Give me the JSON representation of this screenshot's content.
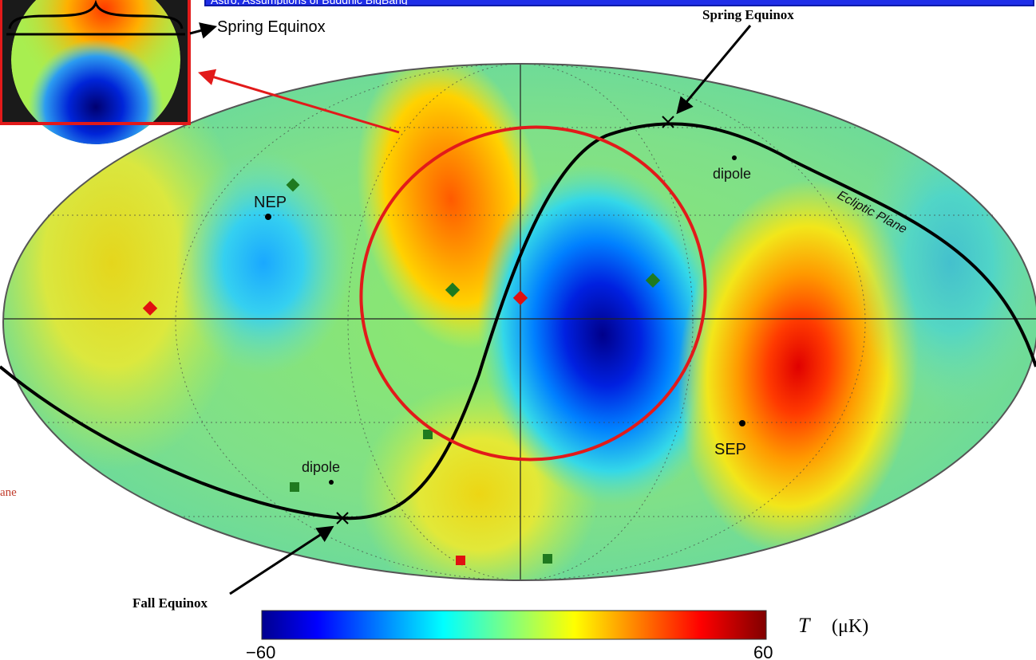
{
  "banner": {
    "text": "Astro, Assumptions of Buddhic BigBang"
  },
  "inset": {
    "equinox_label": "Spring Equinox"
  },
  "map": {
    "labels": {
      "spring_equinox": "Spring Equinox",
      "fall_equinox": "Fall Equinox",
      "nep": "NEP",
      "sep": "SEP",
      "dipole_top": "dipole",
      "dipole_bottom": "dipole",
      "ecliptic_plane": "Ecliptic Plane",
      "cut_off_left": "ane"
    },
    "marker_colors": {
      "diamond_green": "#1f7a1f",
      "diamond_red": "#e01010",
      "square_green": "#1f7a1f",
      "square_red": "#e01010",
      "highlight_ring": "#e21a1a"
    }
  },
  "colorbar": {
    "min_label": "−60",
    "max_label": "60",
    "unit_symbol": "T",
    "unit_text": "(μK)",
    "colormap": "jet"
  }
}
